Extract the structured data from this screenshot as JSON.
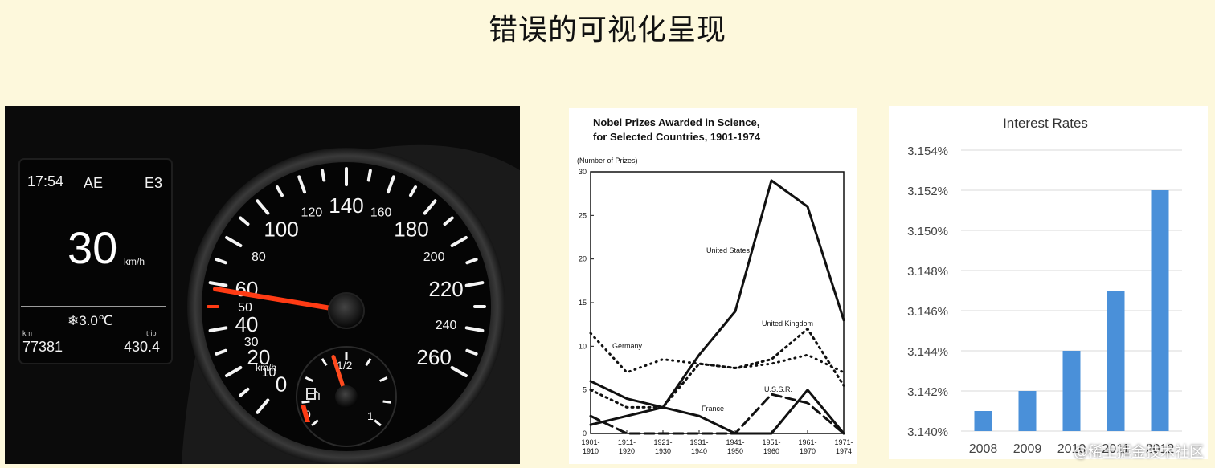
{
  "title": "错误的可视化呈现",
  "dashboard": {
    "time": "17:54",
    "mode": "AE",
    "code": "E3",
    "speed": "30",
    "speed_unit": "km/h",
    "temperature": "❄3.0℃",
    "odometer_label": "km",
    "odometer": "77381",
    "trip_label": "trip",
    "trip": "430.4",
    "speedo_labels": [
      {
        "v": "0",
        "a": -140
      },
      {
        "v": "10",
        "a": -130
      },
      {
        "v": "20",
        "a": -120
      },
      {
        "v": "30",
        "a": -110
      },
      {
        "v": "40",
        "a": -100
      },
      {
        "v": "50",
        "a": -90
      },
      {
        "v": "60",
        "a": -80
      },
      {
        "v": "80",
        "a": -60
      },
      {
        "v": "100",
        "a": -40
      },
      {
        "v": "120",
        "a": -20
      },
      {
        "v": "140",
        "a": 0
      },
      {
        "v": "160",
        "a": 20
      },
      {
        "v": "180",
        "a": 40
      },
      {
        "v": "200",
        "a": 60
      },
      {
        "v": "220",
        "a": 80
      },
      {
        "v": "240",
        "a": 100
      },
      {
        "v": "260",
        "a": 120
      }
    ],
    "speedo_unit": "km/h",
    "fuel_labels": [
      "0",
      "1/2",
      "1"
    ],
    "fuel_level": 0.5
  },
  "nobel": {
    "title_line1": "Nobel Prizes Awarded in Science,",
    "title_line2": "for Selected Countries, 1901-1974",
    "ylabel": "(Number of Prizes)",
    "y_ticks": [
      "0",
      "5",
      "10",
      "15",
      "20",
      "25",
      "30"
    ],
    "x_ticks": [
      [
        "1901-",
        "1910"
      ],
      [
        "1911-",
        "1920"
      ],
      [
        "1921-",
        "1930"
      ],
      [
        "1931-",
        "1940"
      ],
      [
        "1941-",
        "1950"
      ],
      [
        "1951-",
        "1960"
      ],
      [
        "1961-",
        "1970"
      ],
      [
        "1971-",
        "1974"
      ]
    ],
    "labels": {
      "us": "United States",
      "uk": "United Kingdom",
      "germany": "Germany",
      "france": "France",
      "ussr": "U.S.S.R."
    },
    "series": {
      "us": [
        1,
        2,
        3,
        9,
        14,
        29,
        26,
        13
      ],
      "uk": [
        5,
        3,
        3,
        8,
        7.5,
        8.5,
        12,
        5.5
      ],
      "germany": [
        11.5,
        7,
        8.5,
        8,
        7.5,
        8,
        9,
        7
      ],
      "france": [
        6,
        4,
        3,
        2,
        0,
        0,
        5,
        0
      ],
      "ussr": [
        2,
        0,
        0,
        0,
        0,
        4.5,
        3.5,
        0
      ]
    }
  },
  "chart_data": {
    "type": "bar",
    "title": "Interest Rates",
    "categories": [
      "2008",
      "2009",
      "2010",
      "2011",
      "2012"
    ],
    "values": [
      3.141,
      3.142,
      3.144,
      3.147,
      3.152
    ],
    "ylim": [
      3.14,
      3.154
    ],
    "y_ticks": [
      "3.140%",
      "3.142%",
      "3.144%",
      "3.146%",
      "3.148%",
      "3.150%",
      "3.152%",
      "3.154%"
    ],
    "color": "#4a90d9",
    "grid": true
  },
  "watermark": "@稀土掘金技术社区"
}
